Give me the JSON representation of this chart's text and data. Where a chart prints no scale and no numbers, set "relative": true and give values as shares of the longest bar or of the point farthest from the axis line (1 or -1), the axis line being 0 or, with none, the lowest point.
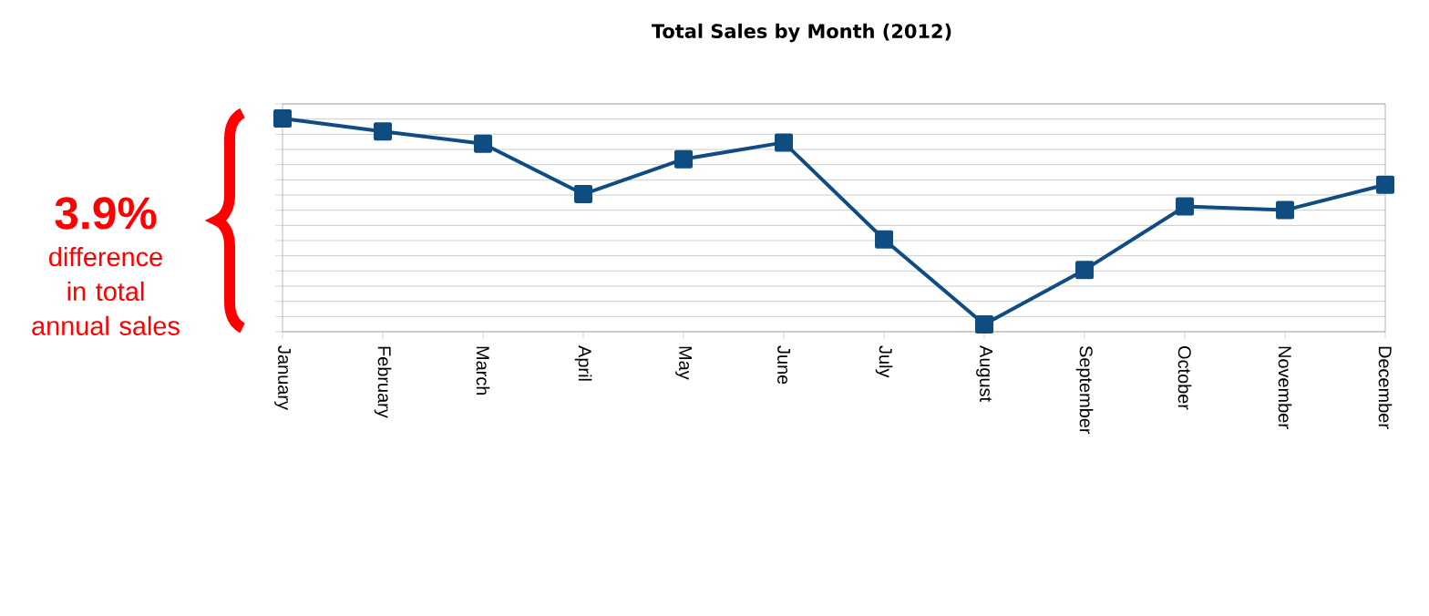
{
  "chart_data": {
    "type": "line",
    "title": "Total Sales by Month (2012)",
    "categories": [
      "January",
      "February",
      "March",
      "April",
      "May",
      "June",
      "July",
      "August",
      "September",
      "October",
      "November",
      "December"
    ],
    "series": [
      {
        "color": "#0f4c81",
        "values": [
          1,
          0.939,
          0.881,
          0.645,
          0.809,
          0.887,
          0.433,
          0.034,
          0.29,
          0.587,
          0.57,
          0.689
        ]
      }
    ],
    "relative": true,
    "grid": "y",
    "marker": "square",
    "line_style": "solid",
    "annotations": [
      "3.9%",
      "difference in total annual sales"
    ]
  }
}
